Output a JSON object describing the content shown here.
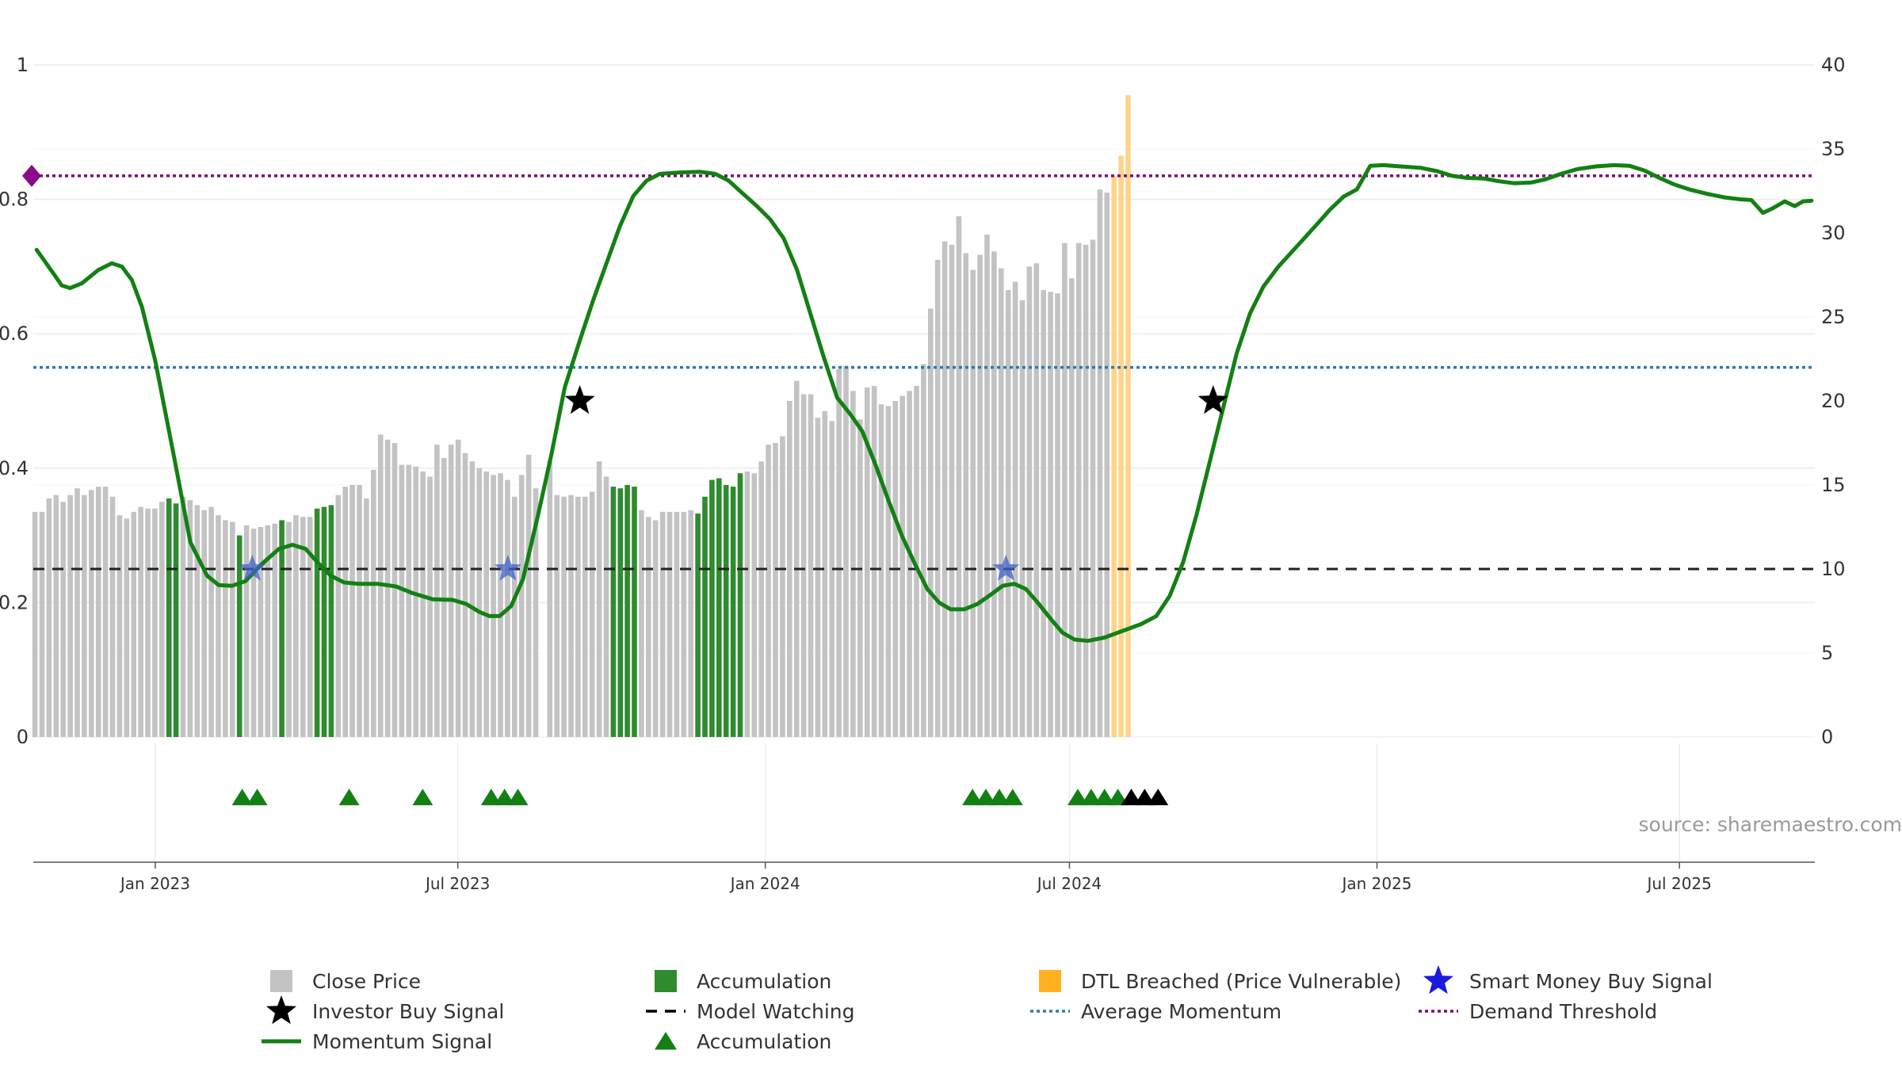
{
  "chart_data": {
    "type": "bar",
    "source": "source: sharemaestro.com",
    "x_ticks": [
      "Jan 2023",
      "Jul 2023",
      "Jan 2024",
      "Jul 2024",
      "Jan 2025",
      "Jul 2025"
    ],
    "y_left": {
      "ticks": [
        0,
        0.2,
        0.4,
        0.6,
        0.8,
        1
      ],
      "tick_labels": [
        "0",
        "0.2",
        "0.4",
        "0.6",
        "0.8",
        "1"
      ],
      "ylim": [
        0,
        1
      ]
    },
    "y_right": {
      "ticks": [
        0,
        5,
        10,
        15,
        20,
        25,
        30,
        35,
        40
      ],
      "tick_labels": [
        "0",
        "5",
        "10",
        "15",
        "20",
        "25",
        "30",
        "35",
        "40"
      ],
      "ylim": [
        0,
        40
      ]
    },
    "grid": true,
    "legend_position": "bottom",
    "x_range": [
      "2022-10-20",
      "2025-09-20"
    ],
    "colors": {
      "close": "#c3c3c3",
      "accumulation": "#2e8b2e",
      "dtl": "#ffd48a",
      "momentum": "#138013",
      "avg_momentum": "#2c7bab",
      "demand": "#7b0a7b",
      "model_watching": "#222222",
      "smart_money": "#1a1adc"
    },
    "reference_lines": {
      "demand_threshold": 0.835,
      "average_momentum": 0.55,
      "model_watching": 0.25
    },
    "close_price": {
      "start_date": "2022-10-21",
      "step_days": 4.22,
      "values": [
        13.4,
        13.4,
        14.2,
        14.4,
        14.0,
        14.4,
        14.8,
        14.4,
        14.7,
        14.9,
        14.9,
        14.3,
        13.2,
        13.0,
        13.4,
        13.7,
        13.6,
        13.6,
        14.0,
        14.2,
        13.9,
        14.3,
        14.1,
        13.8,
        13.5,
        13.7,
        13.2,
        12.9,
        12.8,
        12.0,
        12.6,
        12.4,
        12.5,
        12.6,
        12.7,
        12.9,
        12.8,
        13.2,
        13.1,
        13.1,
        13.6,
        13.7,
        13.8,
        14.4,
        14.9,
        15.0,
        15.0,
        14.2,
        15.9,
        18.0,
        17.7,
        17.5,
        16.2,
        16.2,
        16.1,
        15.8,
        15.5,
        17.4,
        16.6,
        17.4,
        17.7,
        16.9,
        16.4,
        16.0,
        15.8,
        15.6,
        15.7,
        15.3,
        14.3,
        15.6,
        16.8,
        14.8,
        0,
        16.4,
        14.4,
        14.3,
        14.4,
        14.3,
        14.3,
        14.6,
        16.4,
        15.5,
        14.9,
        14.8,
        15.0,
        14.9,
        13.5,
        13.1,
        12.9,
        13.4,
        13.4,
        13.4,
        13.4,
        13.5,
        13.3,
        14.3,
        15.3,
        15.4,
        15.0,
        14.9,
        15.7,
        15.8,
        15.7,
        16.4,
        17.4,
        17.5,
        17.9,
        20.0,
        21.2,
        20.4,
        20.4,
        19.0,
        19.4,
        18.8,
        21.9,
        22.1,
        20.6,
        18.9,
        20.8,
        20.9,
        19.8,
        19.7,
        20.0,
        20.3,
        20.6,
        20.9,
        22.2,
        25.5,
        28.4,
        29.5,
        29.3,
        31.0,
        28.8,
        27.8,
        28.7,
        29.9,
        28.9,
        27.9,
        26.6,
        27.1,
        26.0,
        28.0,
        28.2,
        26.6,
        26.5,
        26.4,
        29.4,
        27.3,
        29.4,
        29.3,
        29.6,
        32.6,
        32.4,
        33.4,
        34.6,
        38.2
      ]
    },
    "accumulation_bars": [
      19,
      20,
      29,
      35,
      40,
      41,
      42,
      82,
      83,
      84,
      85,
      94,
      95,
      96,
      97,
      98,
      99,
      100
    ],
    "dtl_bars": [
      153,
      154,
      155
    ],
    "momentum": {
      "points": [
        [
          "2022-10-22",
          0.725
        ],
        [
          "2022-11-01",
          0.69
        ],
        [
          "2022-11-06",
          0.672
        ],
        [
          "2022-11-11",
          0.668
        ],
        [
          "2022-11-18",
          0.675
        ],
        [
          "2022-11-28",
          0.695
        ],
        [
          "2022-12-06",
          0.705
        ],
        [
          "2022-12-12",
          0.7
        ],
        [
          "2022-12-18",
          0.68
        ],
        [
          "2022-12-24",
          0.64
        ],
        [
          "2023-01-01",
          0.56
        ],
        [
          "2023-01-12",
          0.42
        ],
        [
          "2023-01-22",
          0.29
        ],
        [
          "2023-02-01",
          0.24
        ],
        [
          "2023-02-08",
          0.226
        ],
        [
          "2023-02-16",
          0.225
        ],
        [
          "2023-02-24",
          0.232
        ],
        [
          "2023-03-06",
          0.258
        ],
        [
          "2023-03-16",
          0.28
        ],
        [
          "2023-03-24",
          0.286
        ],
        [
          "2023-04-01",
          0.28
        ],
        [
          "2023-04-08",
          0.26
        ],
        [
          "2023-04-16",
          0.24
        ],
        [
          "2023-04-24",
          0.23
        ],
        [
          "2023-05-03",
          0.228
        ],
        [
          "2023-05-14",
          0.228
        ],
        [
          "2023-05-25",
          0.224
        ],
        [
          "2023-06-04",
          0.214
        ],
        [
          "2023-06-16",
          0.205
        ],
        [
          "2023-06-28",
          0.204
        ],
        [
          "2023-07-06",
          0.198
        ],
        [
          "2023-07-14",
          0.186
        ],
        [
          "2023-07-20",
          0.18
        ],
        [
          "2023-07-26",
          0.18
        ],
        [
          "2023-08-02",
          0.195
        ],
        [
          "2023-08-09",
          0.235
        ],
        [
          "2023-08-18",
          0.33
        ],
        [
          "2023-08-26",
          0.42
        ],
        [
          "2023-09-03",
          0.52
        ],
        [
          "2023-09-12",
          0.59
        ],
        [
          "2023-09-20",
          0.65
        ],
        [
          "2023-09-28",
          0.705
        ],
        [
          "2023-10-06",
          0.76
        ],
        [
          "2023-10-14",
          0.805
        ],
        [
          "2023-10-22",
          0.828
        ],
        [
          "2023-10-30",
          0.838
        ],
        [
          "2023-11-10",
          0.84
        ],
        [
          "2023-11-23",
          0.841
        ],
        [
          "2023-12-02",
          0.838
        ],
        [
          "2023-12-10",
          0.828
        ],
        [
          "2023-12-18",
          0.81
        ],
        [
          "2023-12-27",
          0.79
        ],
        [
          "2024-01-04",
          0.77
        ],
        [
          "2024-01-12",
          0.742
        ],
        [
          "2024-01-20",
          0.695
        ],
        [
          "2024-01-28",
          0.63
        ],
        [
          "2024-02-05",
          0.565
        ],
        [
          "2024-02-13",
          0.505
        ],
        [
          "2024-02-21",
          0.48
        ],
        [
          "2024-02-28",
          0.455
        ],
        [
          "2024-03-07",
          0.405
        ],
        [
          "2024-03-15",
          0.35
        ],
        [
          "2024-03-23",
          0.298
        ],
        [
          "2024-03-31",
          0.255
        ],
        [
          "2024-04-07",
          0.22
        ],
        [
          "2024-04-14",
          0.2
        ],
        [
          "2024-04-21",
          0.19
        ],
        [
          "2024-04-29",
          0.19
        ],
        [
          "2024-05-07",
          0.198
        ],
        [
          "2024-05-15",
          0.212
        ],
        [
          "2024-05-22",
          0.225
        ],
        [
          "2024-05-29",
          0.228
        ],
        [
          "2024-06-05",
          0.22
        ],
        [
          "2024-06-12",
          0.2
        ],
        [
          "2024-06-20",
          0.175
        ],
        [
          "2024-06-27",
          0.155
        ],
        [
          "2024-07-04",
          0.145
        ],
        [
          "2024-07-12",
          0.143
        ],
        [
          "2024-07-22",
          0.148
        ],
        [
          "2024-08-02",
          0.158
        ],
        [
          "2024-08-13",
          0.168
        ],
        [
          "2024-08-22",
          0.18
        ],
        [
          "2024-08-30",
          0.21
        ],
        [
          "2024-09-07",
          0.26
        ],
        [
          "2024-09-15",
          0.33
        ],
        [
          "2024-09-23",
          0.41
        ],
        [
          "2024-10-01",
          0.49
        ],
        [
          "2024-10-09",
          0.57
        ],
        [
          "2024-10-17",
          0.63
        ],
        [
          "2024-10-25",
          0.67
        ],
        [
          "2024-11-03",
          0.7
        ],
        [
          "2024-11-14",
          0.73
        ],
        [
          "2024-11-25",
          0.76
        ],
        [
          "2024-12-04",
          0.785
        ],
        [
          "2024-12-12",
          0.804
        ],
        [
          "2024-12-20",
          0.815
        ],
        [
          "2024-12-28",
          0.85
        ],
        [
          "2025-01-05",
          0.851
        ],
        [
          "2025-01-15",
          0.849
        ],
        [
          "2025-01-27",
          0.847
        ],
        [
          "2025-02-06",
          0.842
        ],
        [
          "2025-02-15",
          0.835
        ],
        [
          "2025-02-24",
          0.832
        ],
        [
          "2025-03-06",
          0.831
        ],
        [
          "2025-03-15",
          0.827
        ],
        [
          "2025-03-24",
          0.824
        ],
        [
          "2025-04-03",
          0.825
        ],
        [
          "2025-04-12",
          0.83
        ],
        [
          "2025-04-21",
          0.838
        ],
        [
          "2025-05-01",
          0.845
        ],
        [
          "2025-05-12",
          0.849
        ],
        [
          "2025-05-23",
          0.851
        ],
        [
          "2025-06-01",
          0.85
        ],
        [
          "2025-06-10",
          0.843
        ],
        [
          "2025-06-19",
          0.832
        ],
        [
          "2025-06-28",
          0.822
        ],
        [
          "2025-07-08",
          0.814
        ],
        [
          "2025-07-18",
          0.808
        ],
        [
          "2025-07-28",
          0.803
        ],
        [
          "2025-08-07",
          0.8
        ],
        [
          "2025-08-13",
          0.799
        ],
        [
          "2025-08-20",
          0.78
        ],
        [
          "2025-08-26",
          0.787
        ],
        [
          "2025-09-02",
          0.797
        ],
        [
          "2025-09-08",
          0.79
        ],
        [
          "2025-09-13",
          0.797
        ],
        [
          "2025-09-18",
          0.798
        ]
      ]
    },
    "investor_buy_signals": [
      [
        "2023-09-12",
        0.5
      ],
      [
        "2024-09-25",
        0.5
      ]
    ],
    "smart_money_signals": [
      [
        "2023-02-28",
        0.25
      ],
      [
        "2023-07-31",
        0.25
      ],
      [
        "2024-05-24",
        0.25
      ]
    ],
    "accumulation_markers": {
      "y": -0.09,
      "green": [
        "2023-02-22",
        "2023-03-03",
        "2023-04-27",
        "2023-06-10",
        "2023-07-21",
        "2023-07-29",
        "2023-08-06",
        "2024-05-04",
        "2024-05-12",
        "2024-05-20",
        "2024-05-28",
        "2024-07-06",
        "2024-07-14",
        "2024-07-22",
        "2024-07-30"
      ],
      "black": [
        "2024-08-07",
        "2024-08-15",
        "2024-08-23"
      ]
    },
    "legend": [
      {
        "key": "close",
        "label": "Close Price",
        "symbol": "square",
        "color": "#c3c3c3"
      },
      {
        "key": "accumulation_bar",
        "label": "Accumulation",
        "symbol": "square",
        "color": "#2e8b2e"
      },
      {
        "key": "dtl",
        "label": "DTL Breached (Price Vulnerable)",
        "symbol": "square",
        "color": "#ffb121"
      },
      {
        "key": "smart_money",
        "label": "Smart Money Buy Signal",
        "symbol": "star",
        "color": "#1a1adc"
      },
      {
        "key": "investor_buy",
        "label": "Investor Buy Signal",
        "symbol": "star",
        "color": "#000000"
      },
      {
        "key": "model_watching",
        "label": "Model Watching",
        "symbol": "dash",
        "color": "#000000"
      },
      {
        "key": "avg_momentum",
        "label": "Average Momentum",
        "symbol": "dot",
        "color": "#2c7bab"
      },
      {
        "key": "demand",
        "label": "Demand Threshold",
        "symbol": "dot",
        "color": "#7b0a7b"
      },
      {
        "key": "momentum",
        "label": "Momentum Signal",
        "symbol": "line",
        "color": "#138013"
      },
      {
        "key": "accumulation_marker",
        "label": "Accumulation",
        "symbol": "triangle",
        "color": "#138013"
      }
    ]
  }
}
